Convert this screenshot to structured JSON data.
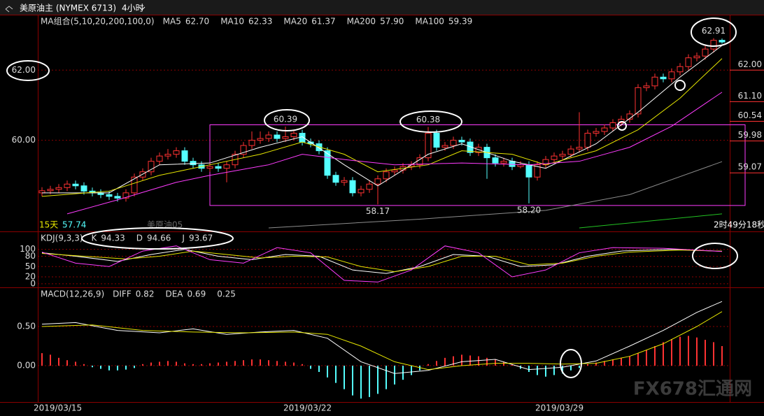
{
  "watermark": "FX678汇通网",
  "chart_data": [
    {
      "type": "candlestick",
      "title": "美原油主 (NYMEX 6713)",
      "subtitle": "4小时",
      "indicator": "MA组合(5,10,20,200,100,0)",
      "up_color": "#ff3232",
      "down_color": "#54ffff",
      "open": [
        58.5,
        58.56,
        58.6,
        58.65,
        58.75,
        58.7,
        58.55,
        58.5,
        58.45,
        58.4,
        58.35,
        58.5,
        58.95,
        59.1,
        59.4,
        59.55,
        59.6,
        59.7,
        59.4,
        59.3,
        59.2,
        59.25,
        59.2,
        59.3,
        59.6,
        59.85,
        60.0,
        60.05,
        60.15,
        60.05,
        60.1,
        60.2,
        59.95,
        59.9,
        59.7,
        59.0,
        58.8,
        58.85,
        58.5,
        58.6,
        58.75,
        58.9,
        59.1,
        59.15,
        59.25,
        59.3,
        59.5,
        60.2,
        59.8,
        59.85,
        60.0,
        59.95,
        59.65,
        59.8,
        59.5,
        59.35,
        59.4,
        59.25,
        59.3,
        58.95,
        59.3,
        59.45,
        59.55,
        59.6,
        59.75,
        59.8,
        60.2,
        60.25,
        60.35,
        60.5,
        60.6,
        60.75,
        61.5,
        61.55,
        61.8,
        61.75,
        61.95,
        62.1,
        62.35,
        62.4,
        62.6,
        62.85
      ],
      "high": [
        58.66,
        58.7,
        58.75,
        58.85,
        58.85,
        58.8,
        58.65,
        58.6,
        58.55,
        58.5,
        58.6,
        59.05,
        59.2,
        59.5,
        59.65,
        59.75,
        59.8,
        59.8,
        59.5,
        59.4,
        59.35,
        59.35,
        59.4,
        59.7,
        59.95,
        60.25,
        60.25,
        60.25,
        60.25,
        60.39,
        60.3,
        60.3,
        60.05,
        60.0,
        59.8,
        59.1,
        58.95,
        58.95,
        58.7,
        58.85,
        59.0,
        59.2,
        59.25,
        59.35,
        59.4,
        59.6,
        60.38,
        60.3,
        59.95,
        60.1,
        60.1,
        60.05,
        59.9,
        59.9,
        59.6,
        59.5,
        59.5,
        59.4,
        59.4,
        59.4,
        59.55,
        59.65,
        59.7,
        59.85,
        60.8,
        60.3,
        60.35,
        60.45,
        60.6,
        60.7,
        60.85,
        61.6,
        61.65,
        61.9,
        61.9,
        62.05,
        62.2,
        62.45,
        62.5,
        62.7,
        62.91,
        62.9
      ],
      "low": [
        58.4,
        58.46,
        58.5,
        58.55,
        58.6,
        58.45,
        58.4,
        58.35,
        58.3,
        58.25,
        58.25,
        58.4,
        58.85,
        59.0,
        59.3,
        59.45,
        59.5,
        59.3,
        59.2,
        59.1,
        59.1,
        59.1,
        58.8,
        59.2,
        59.5,
        59.75,
        59.9,
        59.95,
        59.95,
        59.95,
        60.0,
        59.85,
        59.8,
        59.6,
        58.9,
        58.7,
        58.7,
        58.4,
        58.4,
        58.5,
        58.17,
        58.8,
        59.0,
        59.05,
        59.15,
        59.2,
        59.4,
        59.7,
        59.7,
        59.75,
        59.85,
        59.55,
        59.55,
        58.9,
        59.25,
        59.25,
        59.15,
        59.2,
        58.2,
        58.85,
        59.2,
        59.35,
        59.45,
        59.5,
        59.65,
        59.7,
        60.1,
        60.15,
        60.25,
        60.4,
        60.5,
        60.65,
        61.4,
        61.45,
        61.65,
        61.65,
        61.85,
        62.0,
        62.25,
        62.3,
        62.5,
        62.75
      ],
      "close": [
        58.56,
        58.6,
        58.65,
        58.75,
        58.7,
        58.55,
        58.5,
        58.45,
        58.4,
        58.35,
        58.5,
        58.95,
        59.1,
        59.4,
        59.55,
        59.6,
        59.7,
        59.4,
        59.3,
        59.2,
        59.25,
        59.2,
        59.3,
        59.6,
        59.85,
        60.0,
        60.05,
        60.15,
        60.05,
        60.1,
        60.2,
        59.95,
        59.9,
        59.7,
        59.0,
        58.8,
        58.85,
        58.5,
        58.6,
        58.75,
        58.9,
        59.1,
        59.15,
        59.25,
        59.3,
        59.5,
        60.2,
        59.8,
        59.85,
        60.0,
        59.95,
        59.65,
        59.8,
        59.5,
        59.35,
        59.4,
        59.25,
        59.3,
        58.95,
        59.3,
        59.45,
        59.55,
        59.6,
        59.75,
        59.8,
        60.2,
        60.25,
        60.35,
        60.5,
        60.6,
        60.75,
        61.5,
        61.55,
        61.8,
        61.75,
        61.95,
        62.1,
        62.35,
        62.4,
        62.6,
        62.85,
        62.8
      ],
      "series": [
        {
          "name": "MA5",
          "value_label": "62.70",
          "color": "#ffffff",
          "x": [
            0,
            8,
            14,
            20,
            26,
            31,
            36,
            40,
            46,
            50,
            56,
            60,
            66,
            71,
            76,
            81
          ],
          "values": [
            58.5,
            58.5,
            59.3,
            59.35,
            59.8,
            60.1,
            59.3,
            58.7,
            59.6,
            59.9,
            59.4,
            59.2,
            59.9,
            60.8,
            61.8,
            62.7
          ]
        },
        {
          "name": "MA10",
          "value_label": "62.33",
          "color": "#e6e600",
          "x": [
            0,
            8,
            14,
            20,
            26,
            31,
            36,
            40,
            46,
            50,
            56,
            60,
            66,
            71,
            76,
            81
          ],
          "values": [
            58.4,
            58.55,
            59.0,
            59.3,
            59.6,
            59.95,
            59.6,
            59.1,
            59.3,
            59.7,
            59.6,
            59.3,
            59.7,
            60.3,
            61.2,
            62.33
          ]
        },
        {
          "name": "MA20",
          "value_label": "61.37",
          "color": "#ff3cff",
          "x": [
            3,
            9,
            16,
            20,
            27,
            31,
            36,
            42,
            50,
            58,
            64,
            70,
            75,
            81
          ],
          "values": [
            57.9,
            58.3,
            58.8,
            59.0,
            59.3,
            59.6,
            59.45,
            59.3,
            59.35,
            59.3,
            59.4,
            59.8,
            60.4,
            61.37
          ]
        },
        {
          "name": "MA200",
          "value_label": "57.90",
          "color": "#22c322",
          "x": [
            64,
            81
          ],
          "values": [
            57.5,
            57.9
          ]
        },
        {
          "name": "MA100",
          "value_label": "59.39",
          "color": "#8c8c8c",
          "x": [
            27,
            45,
            60,
            70,
            81
          ],
          "values": [
            57.5,
            57.75,
            58.0,
            58.45,
            59.39
          ]
        }
      ],
      "ylim": [
        57.4,
        63.56
      ],
      "yticks": [
        {
          "value": 62,
          "label": "62.00"
        },
        {
          "value": 60,
          "label": "60.00"
        }
      ],
      "levels": [
        {
          "value": 62,
          "label": "62.00"
        },
        {
          "value": 61.1,
          "label": "61.10"
        },
        {
          "value": 60.54,
          "label": "60.54"
        },
        {
          "value": 59.98,
          "label": "59.98"
        },
        {
          "value": 59.07,
          "label": "59.07"
        }
      ],
      "range_box": {
        "high": 60.44,
        "low": 58.14,
        "color": "#ff3cff"
      },
      "annotations": [
        {
          "x": 29,
          "value": 60.39,
          "label": "60.39",
          "position": "above",
          "color": "#ff3232"
        },
        {
          "x": 46,
          "value": 60.38,
          "label": "60.38",
          "position": "above",
          "color": "#ff3232"
        },
        {
          "x": 40,
          "value": 58.17,
          "label": "58.17",
          "position": "below",
          "color": "#54ffff"
        },
        {
          "x": 58,
          "value": 58.2,
          "label": "58.20",
          "position": "below",
          "color": "#54ffff"
        },
        {
          "x": 80,
          "value": 62.91,
          "label": "62.91",
          "position": "above",
          "color": "#ff3232"
        }
      ],
      "period": "15天",
      "period_low": 57.74,
      "contract": "美原油05",
      "countdown": "2时49分18秒",
      "grid": true
    },
    {
      "type": "line",
      "indicator": "KDJ(9,3,3)",
      "ylim": [
        -10.4,
        150
      ],
      "yticks": [
        100,
        80,
        50,
        20,
        0
      ],
      "grid": true,
      "series": [
        {
          "name": "K",
          "value_label": "94.33",
          "color": "#ffffff",
          "x": [
            0,
            4,
            9,
            13,
            17,
            21,
            25,
            29,
            33,
            37,
            41,
            45,
            49,
            53,
            57,
            61,
            65,
            69,
            75,
            81
          ],
          "values": [
            90,
            80,
            65,
            85,
            100,
            80,
            70,
            85,
            80,
            40,
            30,
            50,
            85,
            80,
            50,
            55,
            80,
            95,
            100,
            94.33
          ]
        },
        {
          "name": "D",
          "value_label": "94.66",
          "color": "#e6e600",
          "x": [
            0,
            5,
            10,
            14,
            18,
            22,
            26,
            30,
            34,
            38,
            42,
            46,
            50,
            54,
            58,
            62,
            66,
            70,
            76,
            81
          ],
          "values": [
            88,
            80,
            72,
            80,
            95,
            85,
            75,
            80,
            78,
            50,
            35,
            50,
            80,
            80,
            55,
            60,
            80,
            92,
            98,
            94.66
          ]
        },
        {
          "name": "J",
          "value_label": "93.67",
          "color": "#ff3cff",
          "x": [
            0,
            4,
            8,
            12,
            16,
            20,
            24,
            28,
            32,
            36,
            40,
            44,
            48,
            52,
            56,
            60,
            64,
            68,
            74,
            81
          ],
          "values": [
            92,
            60,
            50,
            95,
            110,
            70,
            60,
            105,
            90,
            10,
            5,
            40,
            110,
            90,
            20,
            40,
            90,
            105,
            103,
            93.67
          ]
        }
      ]
    },
    {
      "type": "macd",
      "indicator": "MACD(12,26,9)",
      "ylim": [
        -0.464,
        0.991
      ],
      "grid": true,
      "yticks": [
        {
          "value": 0.5,
          "label": "0.50"
        },
        {
          "value": 0,
          "label": "0.00"
        }
      ],
      "histogram": {
        "value_label": "0.25",
        "up_color": "#ff3232",
        "down_color": "#54ffff",
        "values": [
          0.16,
          0.14,
          0.1,
          0.07,
          0.05,
          0.02,
          -0.02,
          -0.04,
          -0.06,
          -0.06,
          -0.05,
          -0.03,
          0.02,
          0.04,
          0.05,
          0.06,
          0.05,
          0.03,
          0.02,
          0.02,
          0.03,
          0.04,
          0.05,
          0.06,
          0.07,
          0.08,
          0.08,
          0.07,
          0.06,
          0.05,
          0.04,
          0.02,
          -0.04,
          -0.08,
          -0.15,
          -0.22,
          -0.3,
          -0.38,
          -0.42,
          -0.4,
          -0.36,
          -0.3,
          -0.24,
          -0.18,
          -0.12,
          -0.06,
          0.02,
          0.06,
          0.1,
          0.12,
          0.14,
          0.13,
          0.12,
          0.1,
          0.08,
          0.05,
          0.02,
          -0.04,
          -0.08,
          -0.12,
          -0.14,
          -0.12,
          -0.1,
          -0.06,
          -0.03,
          0.02,
          0.04,
          0.06,
          0.08,
          0.1,
          0.12,
          0.16,
          0.2,
          0.25,
          0.3,
          0.34,
          0.37,
          0.38,
          0.36,
          0.33,
          0.3,
          0.25
        ]
      },
      "series": [
        {
          "name": "DIFF",
          "value_label": "0.82",
          "color": "#ffffff",
          "x": [
            0,
            4,
            9,
            14,
            18,
            22,
            26,
            30,
            34,
            38,
            42,
            46,
            50,
            54,
            58,
            62,
            66,
            70,
            74,
            78,
            81
          ],
          "values": [
            0.53,
            0.55,
            0.45,
            0.42,
            0.47,
            0.4,
            0.43,
            0.45,
            0.35,
            0.05,
            -0.1,
            -0.06,
            0.05,
            0.08,
            -0.05,
            -0.02,
            0.06,
            0.25,
            0.45,
            0.68,
            0.82
          ]
        },
        {
          "name": "DEA",
          "value_label": "0.69",
          "color": "#e6e600",
          "x": [
            0,
            6,
            12,
            18,
            24,
            30,
            34,
            38,
            42,
            46,
            50,
            54,
            58,
            62,
            66,
            70,
            74,
            78,
            81
          ],
          "values": [
            0.5,
            0.52,
            0.45,
            0.43,
            0.42,
            0.43,
            0.4,
            0.25,
            0.05,
            -0.05,
            0.0,
            0.03,
            0.03,
            0.02,
            0.03,
            0.12,
            0.28,
            0.5,
            0.69
          ]
        }
      ],
      "dates": [
        "2019/03/15",
        "2019/03/22",
        "2019/03/29"
      ]
    }
  ]
}
